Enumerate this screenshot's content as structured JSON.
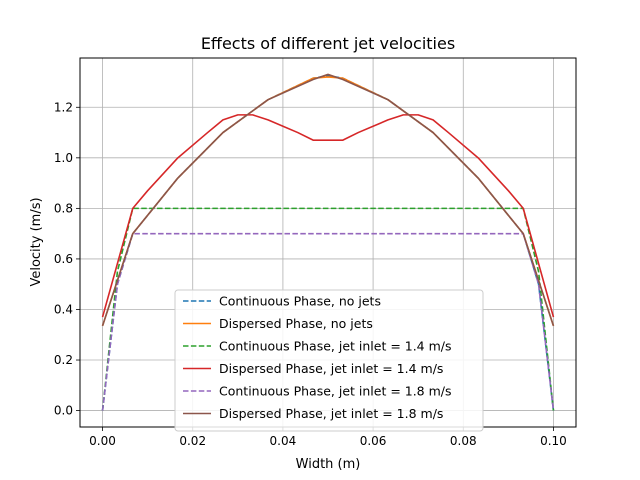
{
  "chart_data": {
    "type": "line",
    "title": "Effects of different jet velocities",
    "xlabel": "Width (m)",
    "ylabel": "Velocity (m/s)",
    "xlim": [
      -0.005,
      0.105
    ],
    "ylim": [
      -0.065,
      1.395
    ],
    "xticks": [
      "0.00",
      "0.02",
      "0.04",
      "0.06",
      "0.08",
      "0.10"
    ],
    "yticks": [
      "0.0",
      "0.2",
      "0.4",
      "0.6",
      "0.8",
      "1.0",
      "1.2"
    ],
    "grid": true,
    "legend_position": "lower center",
    "series": [
      {
        "name": "Continuous Phase, no jets",
        "color": "#1f77b4",
        "dashed": true,
        "x": [
          0.0,
          0.0033,
          0.0067,
          0.0167,
          0.0267,
          0.0367,
          0.0467,
          0.05,
          0.0533,
          0.0633,
          0.0733,
          0.0833,
          0.0933,
          0.0967,
          0.1
        ],
        "y": [
          0.0,
          0.5,
          0.7,
          0.92,
          1.1,
          1.23,
          1.315,
          1.325,
          1.315,
          1.23,
          1.1,
          0.92,
          0.7,
          0.5,
          0.0
        ]
      },
      {
        "name": "Dispersed Phase, no jets",
        "color": "#ff7f0e",
        "dashed": false,
        "x": [
          0.0,
          0.0067,
          0.0167,
          0.0267,
          0.0367,
          0.0467,
          0.05,
          0.0533,
          0.0633,
          0.0733,
          0.0833,
          0.0933,
          0.1
        ],
        "y": [
          0.335,
          0.7,
          0.92,
          1.1,
          1.23,
          1.315,
          1.32,
          1.315,
          1.23,
          1.1,
          0.92,
          0.7,
          0.335
        ]
      },
      {
        "name": "Continuous Phase, jet inlet = 1.4 m/s",
        "color": "#2ca02c",
        "dashed": true,
        "x": [
          0.0,
          0.0033,
          0.0067,
          0.0933,
          0.0967,
          0.1
        ],
        "y": [
          0.0,
          0.55,
          0.8,
          0.8,
          0.55,
          0.0
        ]
      },
      {
        "name": "Dispersed Phase, jet inlet = 1.4 m/s",
        "color": "#d62728",
        "dashed": false,
        "x": [
          0.0,
          0.0067,
          0.01,
          0.0167,
          0.0233,
          0.0267,
          0.03,
          0.0333,
          0.0367,
          0.0433,
          0.0467,
          0.0533,
          0.0567,
          0.0633,
          0.0667,
          0.07,
          0.0733,
          0.0767,
          0.0833,
          0.09,
          0.0933,
          0.1
        ],
        "y": [
          0.37,
          0.8,
          0.87,
          1.0,
          1.1,
          1.15,
          1.17,
          1.17,
          1.15,
          1.1,
          1.07,
          1.07,
          1.1,
          1.15,
          1.17,
          1.17,
          1.15,
          1.1,
          1.0,
          0.87,
          0.8,
          0.37
        ]
      },
      {
        "name": "Continuous Phase, jet inlet = 1.8 m/s",
        "color": "#9467bd",
        "dashed": true,
        "x": [
          0.0,
          0.0033,
          0.0067,
          0.0933,
          0.0967,
          0.1
        ],
        "y": [
          0.0,
          0.5,
          0.7,
          0.7,
          0.5,
          0.0
        ]
      },
      {
        "name": "Dispersed Phase, jet inlet = 1.8 m/s",
        "color": "#8c564b",
        "dashed": false,
        "x": [
          0.0,
          0.0067,
          0.0167,
          0.0267,
          0.0367,
          0.0467,
          0.05,
          0.0533,
          0.0633,
          0.0733,
          0.0833,
          0.0933,
          0.1
        ],
        "y": [
          0.335,
          0.7,
          0.92,
          1.1,
          1.23,
          1.31,
          1.33,
          1.31,
          1.23,
          1.1,
          0.92,
          0.7,
          0.335
        ]
      }
    ]
  }
}
